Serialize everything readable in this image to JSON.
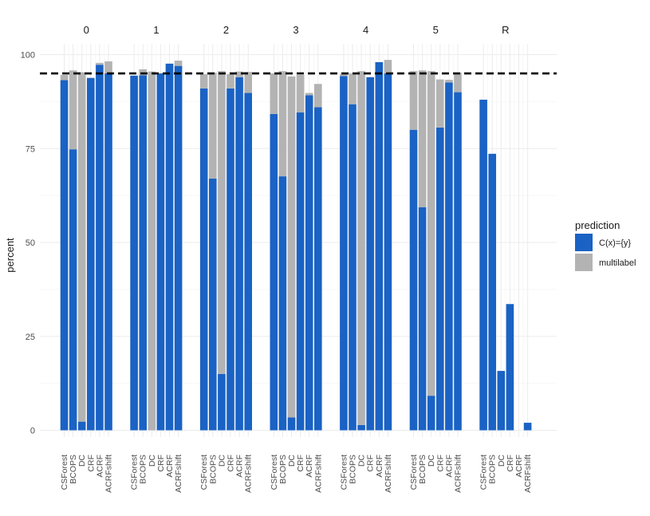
{
  "chart_data": {
    "type": "bar",
    "stacked": true,
    "facet_labels": [
      "0",
      "1",
      "2",
      "3",
      "4",
      "5",
      "R"
    ],
    "categories": [
      "CSForest",
      "BCOPS",
      "DC",
      "CRF",
      "ACRF",
      "ACRFshift"
    ],
    "ylabel": "percent",
    "ylim": [
      0,
      100
    ],
    "yticks": [
      0,
      25,
      50,
      75,
      100
    ],
    "reference_line": 95,
    "legend": {
      "title": "prediction",
      "position": "right",
      "entries": [
        "C(x)={y}",
        "multilabel"
      ]
    },
    "colors": {
      "C(x)={y}": "#1a62c4",
      "multilabel": "#b3b3b3",
      "reference_line": "#000000"
    },
    "series": [
      {
        "name": "C(x)={y}",
        "values": [
          [
            93.2,
            74.8,
            2.3,
            93.8,
            97.3,
            95.0
          ],
          [
            94.4,
            94.5,
            0.0,
            95.0,
            97.6,
            97.0
          ],
          [
            91.0,
            67.0,
            15.0,
            91.0,
            94.0,
            89.8
          ],
          [
            84.2,
            67.6,
            3.4,
            84.6,
            89.2,
            86.0
          ],
          [
            94.3,
            86.8,
            1.4,
            94.0,
            98.0,
            95.0
          ],
          [
            80.0,
            59.4,
            9.2,
            80.6,
            92.6,
            90.0
          ],
          [
            88.0,
            73.6,
            15.8,
            33.6,
            0.0,
            2.0
          ]
        ]
      },
      {
        "name": "multilabel",
        "values": [
          [
            1.4,
            21.0,
            93.0,
            0.0,
            0.5,
            3.2
          ],
          [
            0.0,
            1.6,
            95.5,
            0.0,
            0.0,
            1.4
          ],
          [
            3.8,
            28.2,
            80.6,
            3.8,
            1.5,
            5.6
          ],
          [
            10.8,
            28.0,
            90.8,
            10.0,
            0.6,
            6.2
          ],
          [
            0.5,
            8.2,
            94.2,
            0.0,
            0.0,
            3.6
          ],
          [
            15.6,
            36.4,
            86.4,
            12.8,
            0.7,
            5.2
          ],
          [
            0.0,
            0.0,
            0.0,
            0.0,
            0.0,
            0.0
          ]
        ]
      }
    ]
  }
}
